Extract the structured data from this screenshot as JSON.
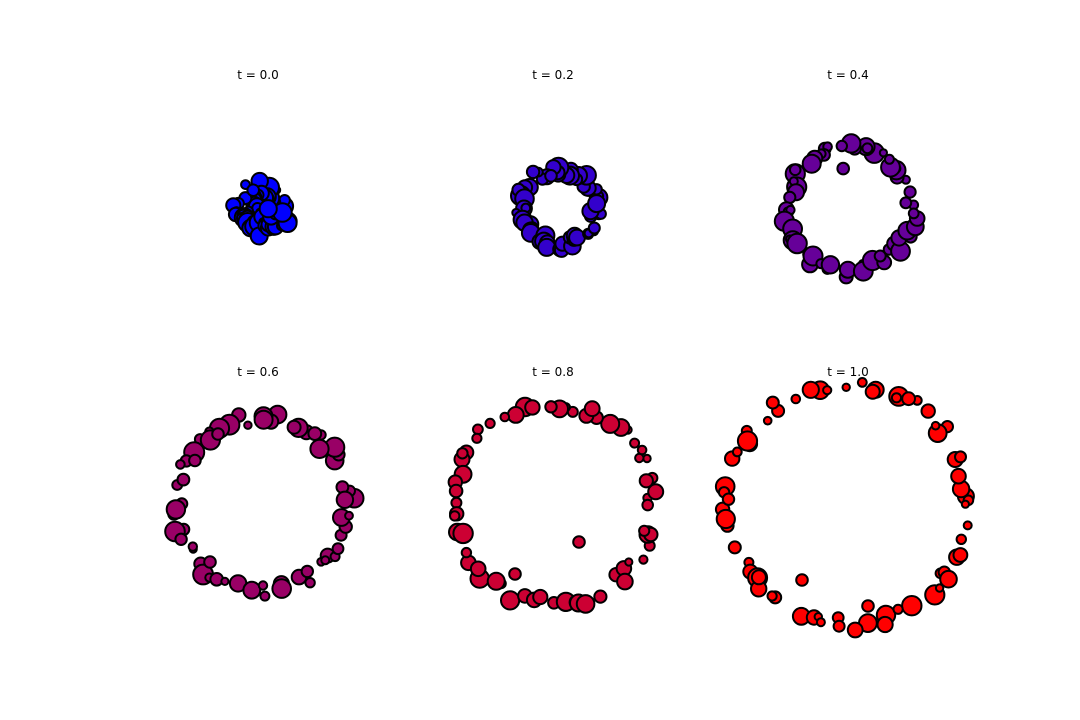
{
  "chart_data": {
    "type": "scatter",
    "edge_color": "#000000",
    "axes_visible": false,
    "grid": false,
    "legend": "none",
    "xlim": [
      -3.5,
      3.5
    ],
    "ylim": [
      -3.5,
      3.5
    ],
    "panels": [
      {
        "title": "t = 0.0",
        "t": 0.0,
        "color": "#0000ff",
        "center": [
          0.1,
          -0.05
        ],
        "radius": 0.42,
        "jitter": 0.32,
        "n": 60,
        "seed": 11,
        "outliers": [
          [
            -0.12,
            0.42
          ]
        ]
      },
      {
        "title": "t = 0.2",
        "t": 0.2,
        "color": "#3300cc",
        "center": [
          0.15,
          0.0
        ],
        "radius": 0.95,
        "jitter": 0.16,
        "n": 60,
        "seed": 23,
        "outliers": [
          [
            -0.05,
            0.78
          ]
        ]
      },
      {
        "title": "t = 0.4",
        "t": 0.4,
        "color": "#660099",
        "center": [
          0.05,
          -0.05
        ],
        "radius": 1.55,
        "jitter": 0.16,
        "n": 62,
        "seed": 37,
        "outliers": [
          [
            -0.12,
            0.96
          ]
        ]
      },
      {
        "title": "t = 0.6",
        "t": 0.6,
        "color": "#990066",
        "center": [
          0.1,
          0.0
        ],
        "radius": 2.15,
        "jitter": 0.16,
        "n": 62,
        "seed": 41,
        "outliers": [
          [
            -1.0,
            1.75
          ],
          [
            -1.2,
            -1.45
          ]
        ]
      },
      {
        "title": "t = 0.8",
        "t": 0.8,
        "color": "#cc0033",
        "center": [
          0.0,
          0.0
        ],
        "radius": 2.5,
        "jitter": 0.16,
        "n": 64,
        "seed": 53,
        "outliers": [
          [
            -0.95,
            -1.75
          ],
          [
            0.65,
            -0.95
          ]
        ]
      },
      {
        "title": "t = 1.0",
        "t": 1.0,
        "color": "#ff0000",
        "center": [
          0.0,
          0.0
        ],
        "radius": 3.0,
        "jitter": 0.16,
        "n": 66,
        "seed": 67,
        "outliers": [
          [
            -1.15,
            -1.9
          ],
          [
            0.5,
            -2.55
          ]
        ]
      }
    ]
  }
}
